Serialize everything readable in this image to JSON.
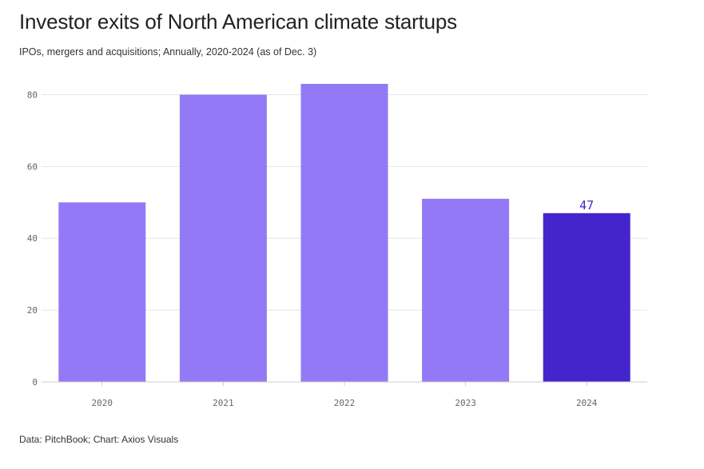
{
  "chart_data": {
    "type": "bar",
    "title": "Investor exits of North American climate startups",
    "subtitle": "IPOs, mergers and acquisitions; Annually, 2020-2024 (as of Dec. 3)",
    "categories": [
      "2020",
      "2021",
      "2022",
      "2023",
      "2024"
    ],
    "values": [
      50,
      80,
      83,
      51,
      47
    ],
    "highlight_index": 4,
    "data_labels": [
      {
        "index": 4,
        "text": "47"
      }
    ],
    "ylim": [
      0,
      85
    ],
    "yticks": [
      0,
      20,
      40,
      60,
      80
    ],
    "xlabel": "",
    "ylabel": "",
    "grid": true,
    "legend": "none",
    "colors": {
      "bar": "#9479f7",
      "highlight": "#4425cc",
      "highlight_label": "#4425cc",
      "grid": "#e4e4e4",
      "axis": "#cccccc"
    }
  },
  "source": "Data: PitchBook; Chart: Axios Visuals"
}
